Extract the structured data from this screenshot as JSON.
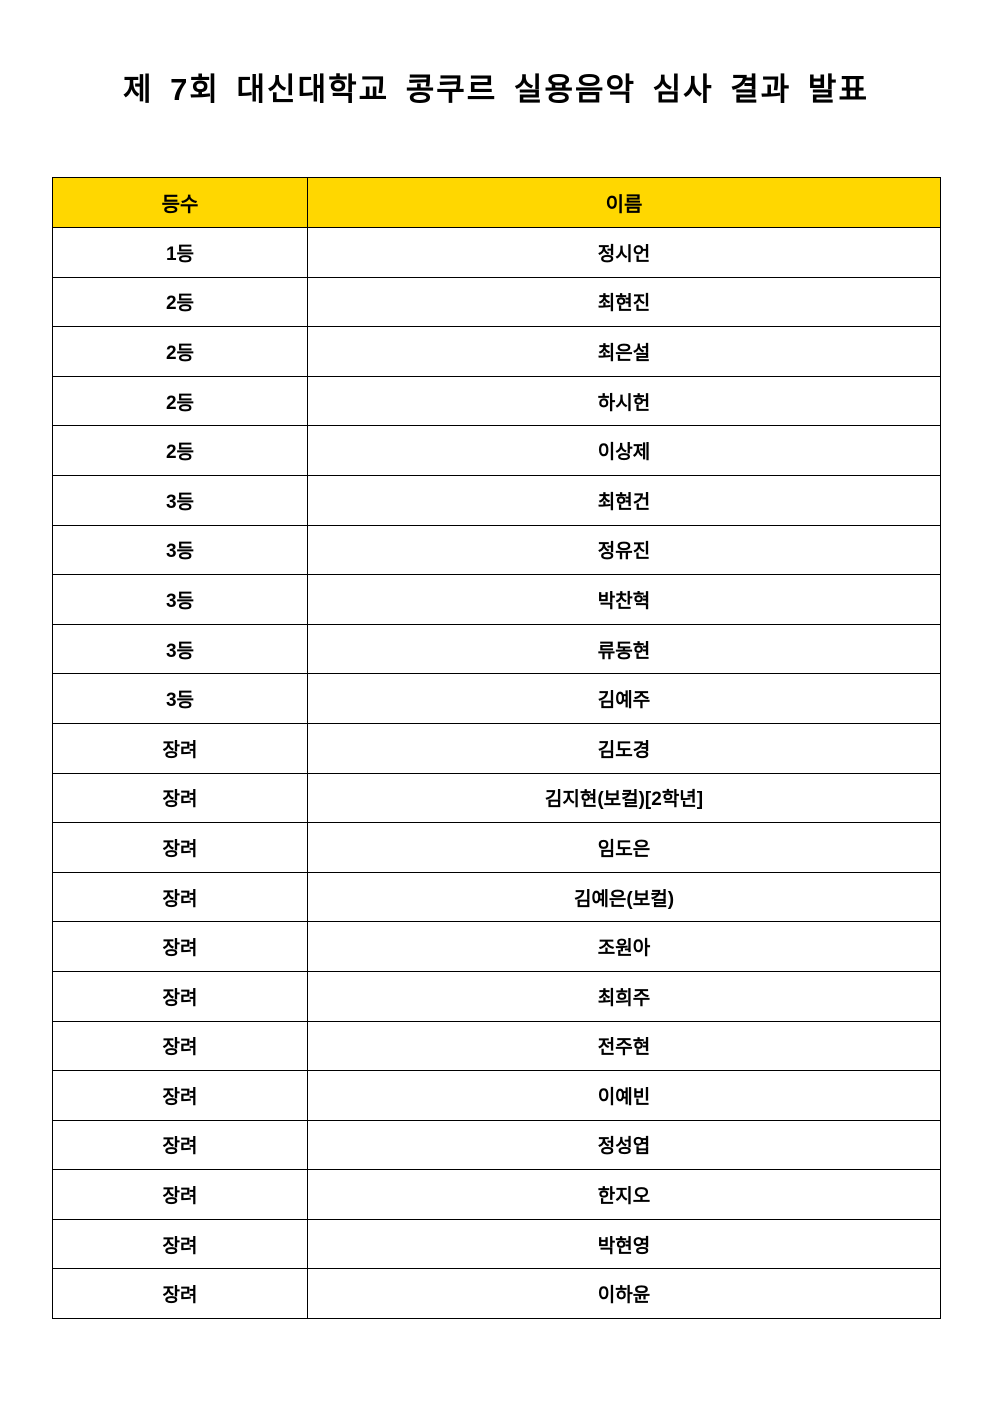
{
  "title": "제 7회 대신대학교 콩쿠르 실용음악 심사 결과 발표",
  "header_color": "#FFD700",
  "table": {
    "headers": [
      "등수",
      "이름"
    ],
    "rows": [
      [
        "1등",
        "정시언"
      ],
      [
        "2등",
        "최현진"
      ],
      [
        "2등",
        "최은설"
      ],
      [
        "2등",
        "하시헌"
      ],
      [
        "2등",
        "이상제"
      ],
      [
        "3등",
        "최현건"
      ],
      [
        "3등",
        "정유진"
      ],
      [
        "3등",
        "박찬혁"
      ],
      [
        "3등",
        "류동현"
      ],
      [
        "3등",
        "김예주"
      ],
      [
        "장려",
        "김도경"
      ],
      [
        "장려",
        "김지현(보컬)[2학년]"
      ],
      [
        "장려",
        "임도은"
      ],
      [
        "장려",
        "김예은(보컬)"
      ],
      [
        "장려",
        "조원아"
      ],
      [
        "장려",
        "최희주"
      ],
      [
        "장려",
        "전주현"
      ],
      [
        "장려",
        "이예빈"
      ],
      [
        "장려",
        "정성엽"
      ],
      [
        "장려",
        "한지오"
      ],
      [
        "장려",
        "박현영"
      ],
      [
        "장려",
        "이하윤"
      ]
    ]
  }
}
